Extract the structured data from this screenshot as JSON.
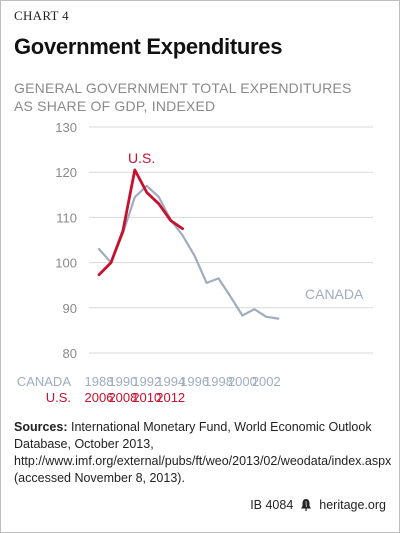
{
  "header": {
    "label": "CHART 4",
    "title": "Government Expenditures",
    "subtitle_lines": [
      "GENERAL GOVERNMENT TOTAL EXPENDITURES",
      "AS SHARE OF GDP, INDEXED"
    ]
  },
  "chart_data": {
    "type": "line",
    "title": "Government Expenditures",
    "subtitle": "GENERAL GOVERNMENT TOTAL EXPENDITURES AS SHARE OF GDP, INDEXED",
    "ylabel": "",
    "ylim": [
      80,
      130
    ],
    "yticks": [
      80,
      90,
      100,
      110,
      120,
      130
    ],
    "grid": "horizontal",
    "x_axes": [
      {
        "name": "CANADA",
        "color": "#9eadc0",
        "tick_labels": [
          "1988",
          "1990",
          "1992",
          "1994",
          "1996",
          "1998",
          "2000",
          "2002"
        ]
      },
      {
        "name": "U.S.",
        "color": "#c8102e",
        "tick_labels": [
          "2006",
          "2008",
          "2010",
          "2012"
        ]
      }
    ],
    "series": [
      {
        "name": "CANADA",
        "color": "#9eadc0",
        "x": [
          1988,
          1989,
          1990,
          1991,
          1992,
          1993,
          1994,
          1995,
          1996,
          1997,
          1998,
          1999,
          2000,
          2001,
          2002,
          2003
        ],
        "values": [
          103,
          100,
          106.5,
          114.5,
          117,
          114.5,
          109.5,
          106,
          101.5,
          95.5,
          96.5,
          92.5,
          88.3,
          89.7,
          88,
          87.6
        ]
      },
      {
        "name": "U.S.",
        "color": "#c8102e",
        "x": [
          2006,
          2007,
          2008,
          2009,
          2010,
          2011,
          2012,
          2013
        ],
        "values": [
          97.3,
          100,
          107,
          120.5,
          115.5,
          113,
          109.3,
          107.5
        ]
      }
    ]
  },
  "sources": {
    "label": "Sources:",
    "text": " International Monetary Fund, World Economic Outlook Database, October 2013, http://www.imf.org/external/pubs/ft/weo/2013/02/weodata/index.aspx (accessed November 8, 2013)."
  },
  "footer": {
    "ib": "IB 4084",
    "site": "heritage.org",
    "logo_icon": "liberty-bell-icon"
  }
}
